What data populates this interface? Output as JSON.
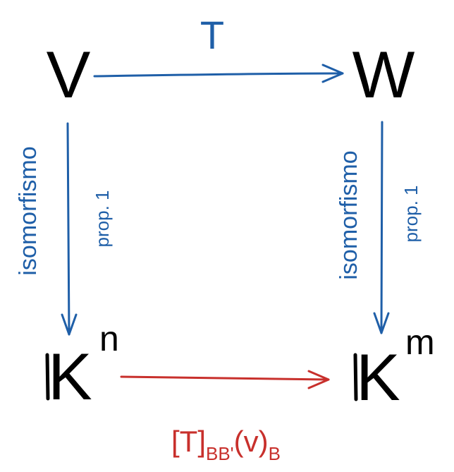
{
  "nodes": {
    "top_left": "V",
    "top_right": "W",
    "bottom_left": {
      "base": "K",
      "exponent": "n"
    },
    "bottom_right": {
      "base": "K",
      "exponent": "m"
    }
  },
  "arrows": {
    "top": {
      "label": "T"
    },
    "left": {
      "label_main": "isomorfismo",
      "label_note": "prop. 1"
    },
    "right": {
      "label_main": "isomorfismo",
      "label_note": "prop. 1"
    },
    "bottom": {
      "label_open": "[T]",
      "label_sub1": "BB'",
      "label_mid": "(v)",
      "label_sub2": "B"
    }
  },
  "colors": {
    "blue": "#1f5fa8",
    "red": "#c8302c",
    "black": "#000000"
  }
}
